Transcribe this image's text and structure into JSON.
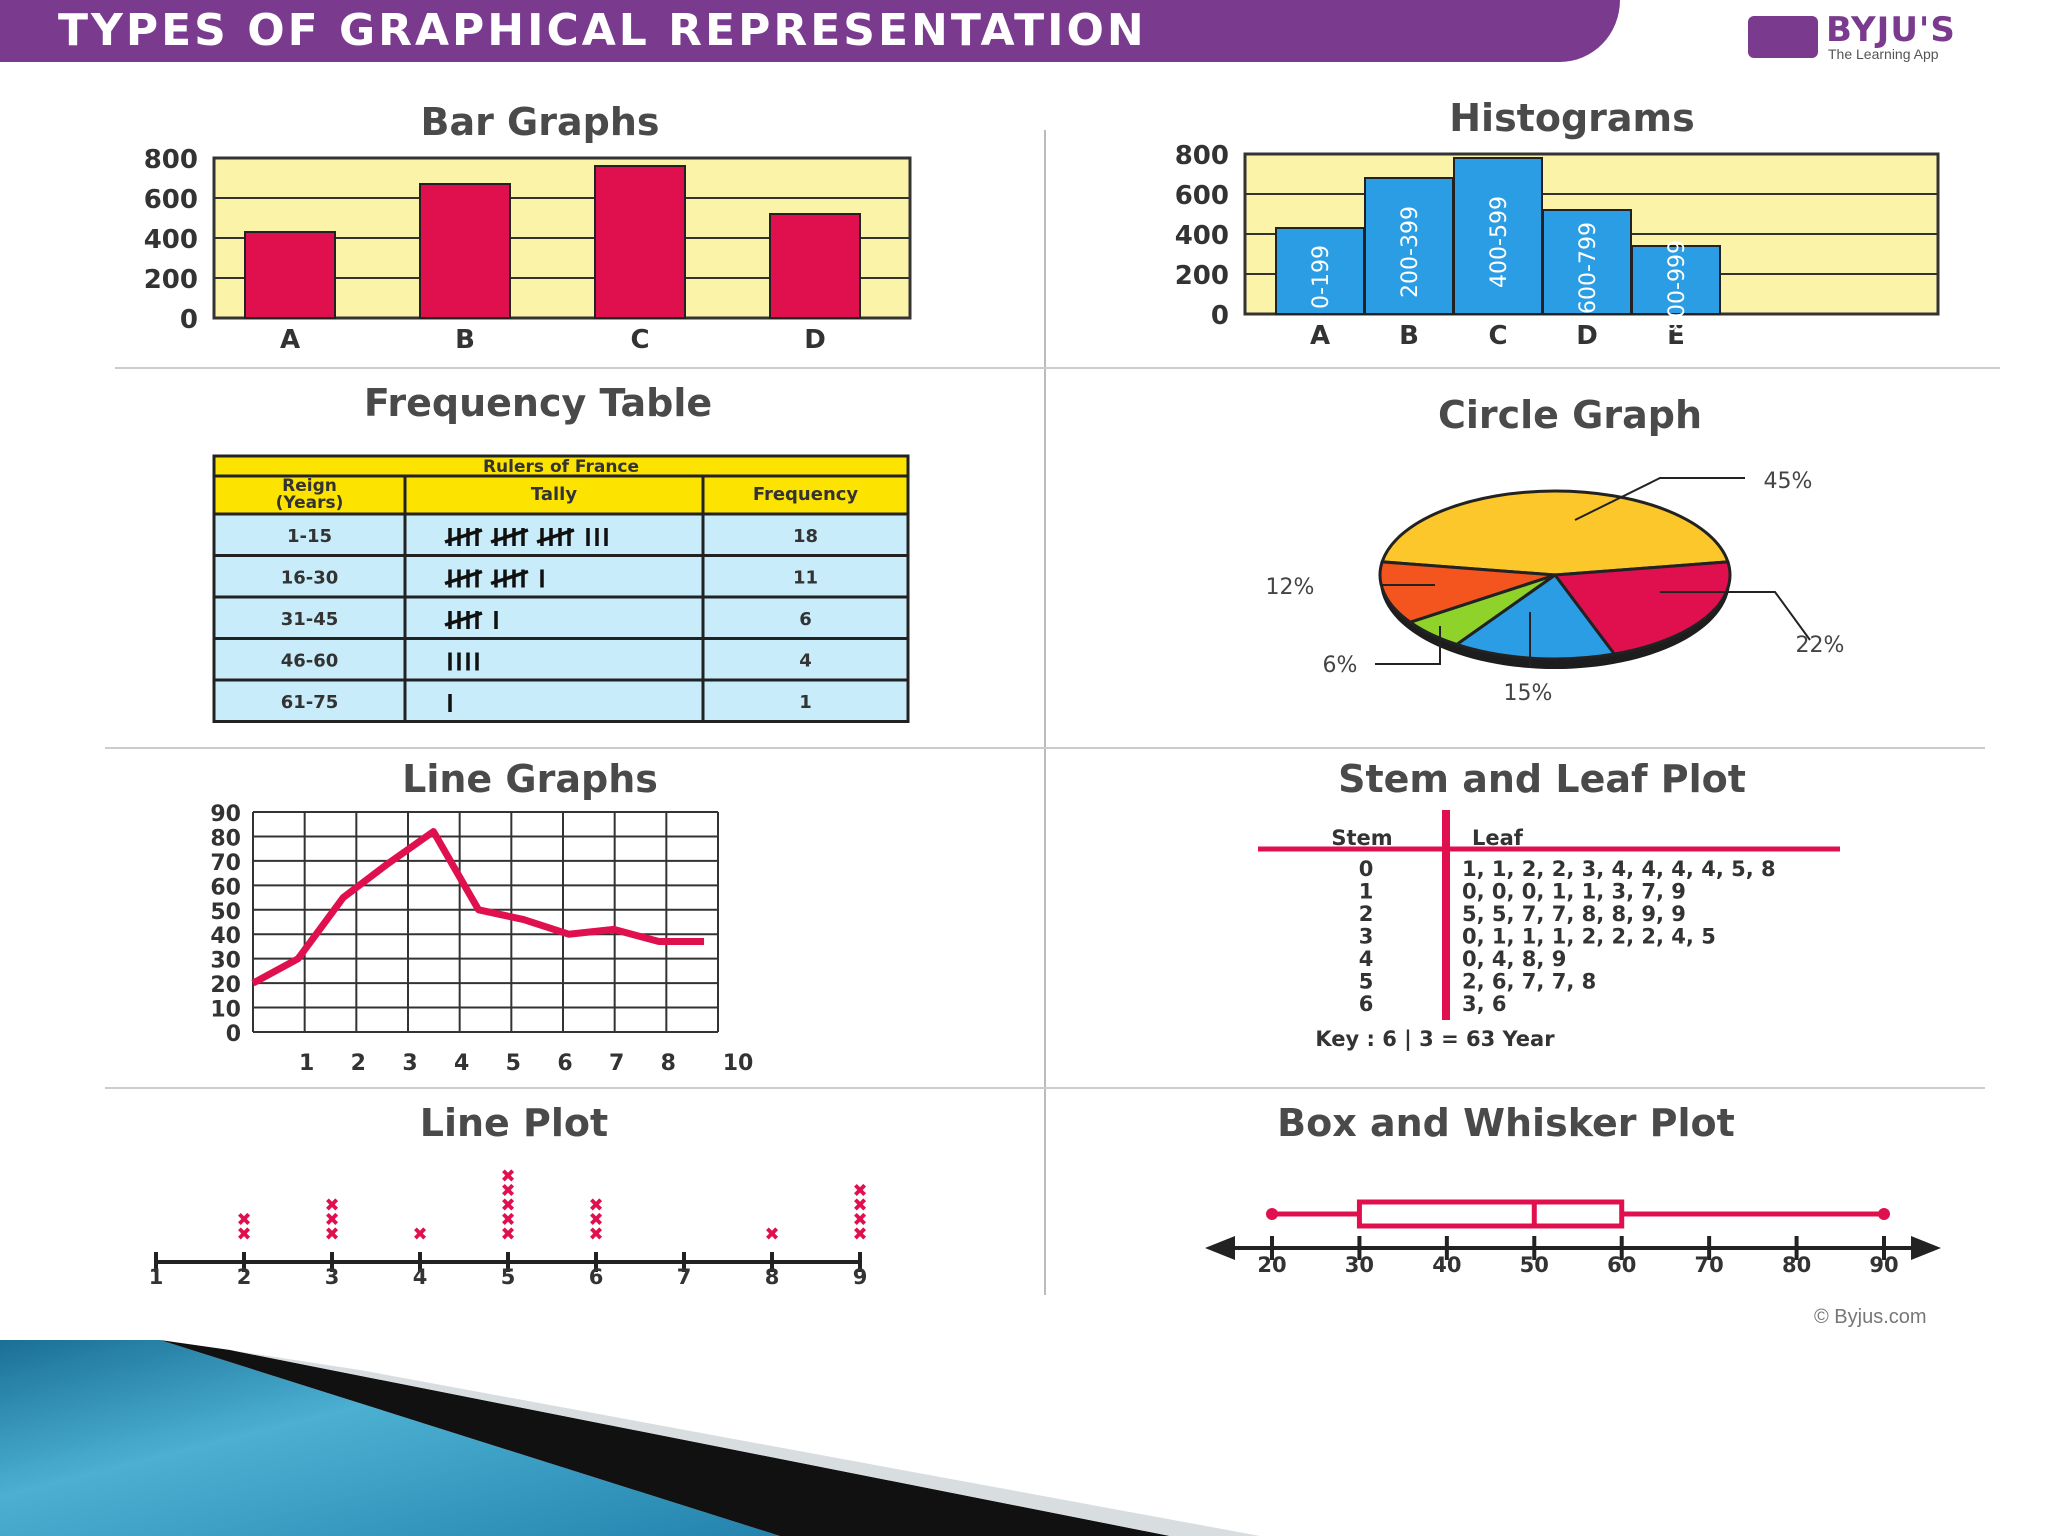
{
  "header": {
    "title": "TYPES OF GRAPHICAL REPRESENTATION"
  },
  "logo": {
    "name": "BYJU'S",
    "tagline": "The Learning App"
  },
  "copyright": "© Byjus.com",
  "colors": {
    "header": "#7a3b8f",
    "accent": "#e0104f",
    "plot_bg": "#fbf3a8",
    "bar": "#e0104f",
    "hist": "#2a9de4",
    "table_head": "#fce300",
    "table_cell": "#c8ecf9"
  },
  "chart_data": [
    {
      "type": "bar",
      "title": "Bar Graphs",
      "categories": [
        "A",
        "B",
        "C",
        "D"
      ],
      "values": [
        430,
        670,
        760,
        520
      ],
      "y_ticks": [
        "800",
        "600",
        "400",
        "200",
        "0"
      ],
      "ylim": [
        0,
        800
      ],
      "grid": true
    },
    {
      "type": "bar",
      "title": "Histograms",
      "categories": [
        "A",
        "B",
        "C",
        "D",
        "E"
      ],
      "bin_labels": [
        "0-199",
        "200-399",
        "400-599",
        "600-799",
        "800-999"
      ],
      "values": [
        430,
        680,
        780,
        520,
        340
      ],
      "y_ticks": [
        "800",
        "600",
        "400",
        "200",
        "0"
      ],
      "ylim": [
        0,
        800
      ],
      "grid": true
    },
    {
      "type": "table",
      "title": "Frequency Table",
      "caption": "Rulers of France",
      "columns": [
        "Reign (Years)",
        "Tally",
        "Frequency"
      ],
      "rows": [
        {
          "reign": "1-15",
          "tally": 18,
          "frequency": "18"
        },
        {
          "reign": "16-30",
          "tally": 11,
          "frequency": "11"
        },
        {
          "reign": "31-45",
          "tally": 6,
          "frequency": "6"
        },
        {
          "reign": "46-60",
          "tally": 4,
          "frequency": "4"
        },
        {
          "reign": "61-75",
          "tally": 1,
          "frequency": "1"
        }
      ]
    },
    {
      "type": "pie",
      "title": "Circle Graph",
      "slices": [
        {
          "label": "45%",
          "value": 45,
          "color": "#fcc72a"
        },
        {
          "label": "22%",
          "value": 22,
          "color": "#e0104f"
        },
        {
          "label": "15%",
          "value": 15,
          "color": "#2a9de4"
        },
        {
          "label": "6%",
          "value": 6,
          "color": "#8ed22a"
        },
        {
          "label": "12%",
          "value": 12,
          "color": "#f4541e"
        }
      ]
    },
    {
      "type": "line",
      "title": "Line Graphs",
      "x": [
        0,
        1,
        2,
        3,
        4,
        5,
        6,
        7,
        8,
        9,
        10
      ],
      "y": [
        20,
        30,
        55,
        69,
        82,
        50,
        46,
        40,
        42,
        37,
        37
      ],
      "x_ticks": [
        "1",
        "2",
        "3",
        "4",
        "5",
        "6",
        "7",
        "8",
        "10"
      ],
      "y_ticks": [
        "90",
        "80",
        "70",
        "60",
        "50",
        "40",
        "30",
        "20",
        "10",
        "0"
      ],
      "ylim": [
        0,
        90
      ],
      "grid": true
    },
    {
      "type": "table",
      "title": "Stem and Leaf Plot",
      "columns": [
        "Stem",
        "Leaf"
      ],
      "rows": [
        {
          "stem": "0",
          "leaf": "1, 1, 2, 2, 3, 4, 4, 4, 4, 5, 8"
        },
        {
          "stem": "1",
          "leaf": "0, 0, 0, 1, 1, 3, 7, 9"
        },
        {
          "stem": "2",
          "leaf": "5, 5, 7, 7, 8, 8, 9, 9"
        },
        {
          "stem": "3",
          "leaf": "0, 1, 1, 1, 2, 2, 2, 4, 5"
        },
        {
          "stem": "4",
          "leaf": "0, 4, 8, 9"
        },
        {
          "stem": "5",
          "leaf": "2, 6, 7, 7, 8"
        },
        {
          "stem": "6",
          "leaf": "3, 6"
        }
      ],
      "key": "Key : 6 | 3 = 63 Year"
    },
    {
      "type": "scatter",
      "title": "Line Plot",
      "x_ticks": [
        "1",
        "2",
        "3",
        "4",
        "5",
        "6",
        "7",
        "8",
        "9"
      ],
      "counts": [
        0,
        2,
        3,
        1,
        5,
        3,
        0,
        1,
        4
      ]
    },
    {
      "type": "scatter",
      "title": "Box and Whisker Plot",
      "x_ticks": [
        "20",
        "30",
        "40",
        "50",
        "60",
        "70",
        "80",
        "90"
      ],
      "min": 20,
      "q1": 30,
      "median": 50,
      "q3": 60,
      "max": 90
    }
  ]
}
